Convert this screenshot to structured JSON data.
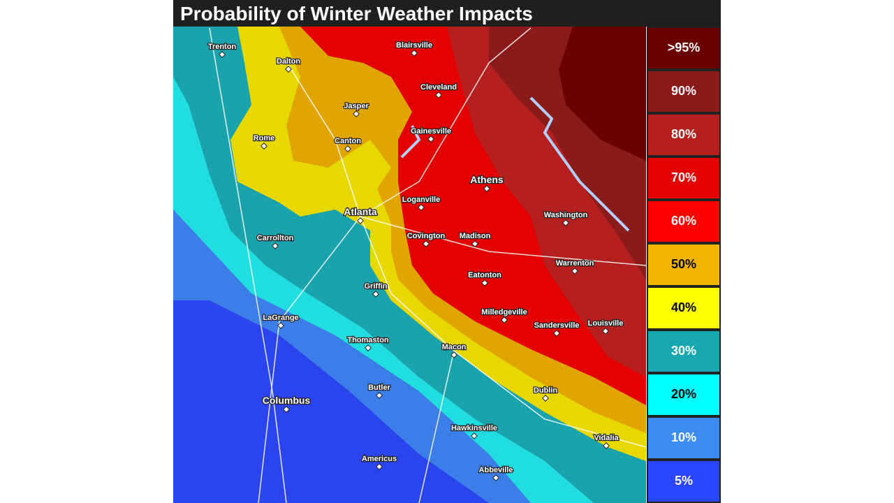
{
  "title": "Probability of Winter Weather Impacts",
  "legend": [
    ">95%",
    "90%",
    "80%",
    "70%",
    "60%",
    "50%",
    "40%",
    "30%",
    "20%",
    "10%",
    "5%"
  ],
  "cities": [
    "Trenton",
    "Dalton",
    "Blairsville",
    "Cleveland",
    "Jasper",
    "Gainesville",
    "Rome",
    "Canton",
    "Athens",
    "Loganville",
    "Atlanta",
    "Washington",
    "Carrollton",
    "Covington",
    "Madison",
    "Warrenton",
    "Eatonton",
    "Griffin",
    "Milledgeville",
    "LaGrange",
    "Sandersville",
    "Louisville",
    "Thomaston",
    "Macon",
    "Dublin",
    "Butler",
    "Columbus",
    "Hawkinsville",
    "Vidalia",
    "Americus",
    "Abbeville"
  ]
}
